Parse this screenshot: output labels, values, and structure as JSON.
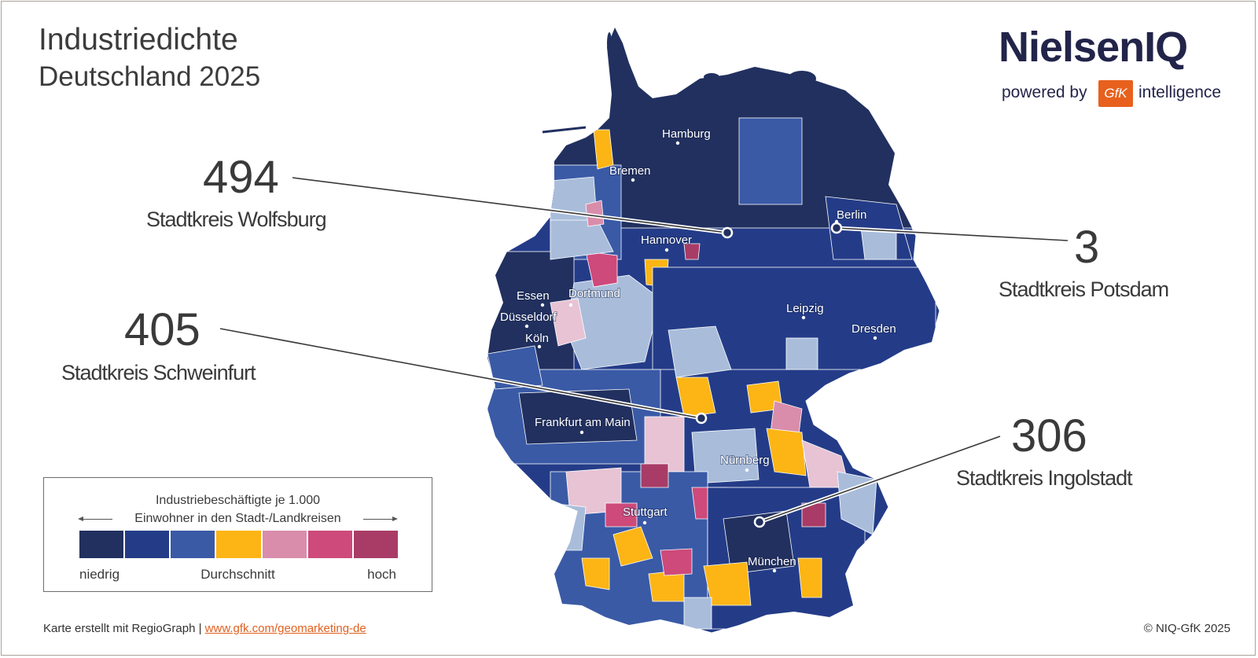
{
  "title": "Industriedichte",
  "subtitle": "Deutschland 2025",
  "logo": {
    "brand": "NielsenIQ",
    "powered_by": "powered by",
    "gfk": "GfK",
    "intelligence": "intelligence"
  },
  "colors": {
    "class1": "#21305f",
    "class2": "#243c88",
    "class3": "#3a5aa6",
    "class_light": "#a9bddb",
    "class4": "#fdb515",
    "class5": "#d98daa",
    "class6": "#cd4a7b",
    "class7": "#a83c66",
    "pale_pink": "#e7c3d4"
  },
  "cities": [
    {
      "name": "Hamburg"
    },
    {
      "name": "Bremen"
    },
    {
      "name": "Berlin"
    },
    {
      "name": "Hannover"
    },
    {
      "name": "Essen"
    },
    {
      "name": "Dortmund"
    },
    {
      "name": "Düsseldorf"
    },
    {
      "name": "Köln"
    },
    {
      "name": "Leipzig"
    },
    {
      "name": "Dresden"
    },
    {
      "name": "Frankfurt am Main"
    },
    {
      "name": "Nürnberg"
    },
    {
      "name": "Stuttgart"
    },
    {
      "name": "München"
    }
  ],
  "callouts": [
    {
      "value": "494",
      "label": "Stadtkreis Wolfsburg"
    },
    {
      "value": "405",
      "label": "Stadtkreis Schweinfurt"
    },
    {
      "value": "3",
      "label": "Stadtkreis Potsdam"
    },
    {
      "value": "306",
      "label": "Stadtkreis Ingolstadt"
    }
  ],
  "legend": {
    "title_line1": "Industriebeschäftigte je 1.000",
    "title_line2": "Einwohner in den Stadt-/Landkreisen",
    "low": "niedrig",
    "mid": "Durchschnitt",
    "high": "hoch",
    "swatches": [
      "#21305f",
      "#243c88",
      "#3a5aa6",
      "#fdb515",
      "#d98daa",
      "#cd4a7b",
      "#a83c66"
    ]
  },
  "footer": {
    "credit": "Karte erstellt mit RegioGraph |",
    "link": "www.gfk.com/geomarketing-de",
    "copyright": "© NIQ-GfK 2025"
  }
}
